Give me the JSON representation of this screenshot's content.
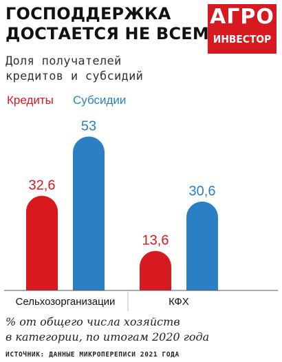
{
  "header": {
    "title_line1": "ГОСПОДДЕРЖКА",
    "title_line2": "ДОСТАЕТСЯ НЕ ВСЕМ",
    "subtitle_line1": "Доля получателей",
    "subtitle_line2": "кредитов и субсидий"
  },
  "logo": {
    "line1": "АГРО",
    "line2": "ИНВЕСТОР"
  },
  "colors": {
    "credits": "#d71920",
    "subsidies": "#2b7fc3",
    "axis": "#555555",
    "grid": "#bbbbbb"
  },
  "chart_data": {
    "type": "bar",
    "categories": [
      "Сельхозорганизации",
      "КФХ"
    ],
    "series": [
      {
        "name": "Кредиты",
        "values": [
          32.6,
          13.6
        ],
        "labels": [
          "32,6",
          "13,6"
        ]
      },
      {
        "name": "Субсидии",
        "values": [
          53,
          30.6
        ],
        "labels": [
          "53",
          "30,6"
        ]
      }
    ],
    "ylim": [
      0,
      55
    ],
    "legend_position": "top-left",
    "grid": false
  },
  "footer": {
    "note_line1": "% от общего числа хозяйств",
    "note_line2": "в категории, по итогам 2020 года",
    "source": "ИСТОЧНИК: ДАННЫЕ МИКРОПЕРЕПИСИ 2021 ГОДА"
  }
}
